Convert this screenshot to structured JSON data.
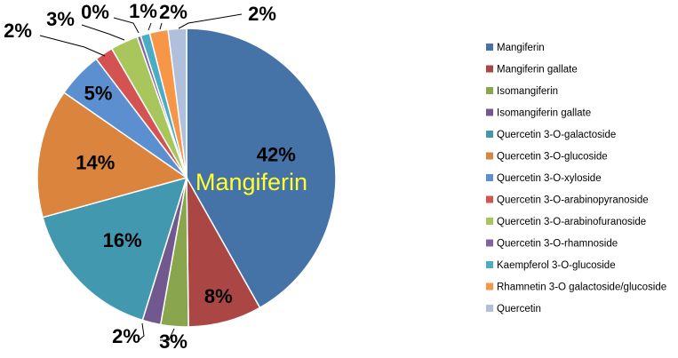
{
  "chart_data": {
    "type": "pie",
    "title": "",
    "center_label": "Mangiferin",
    "legend_position": "right",
    "slices": [
      {
        "name": "Mangiferin",
        "value": 42,
        "label": "42%",
        "color": "#4572A7"
      },
      {
        "name": "Mangiferin gallate",
        "value": 8,
        "label": "8%",
        "color": "#AA4643"
      },
      {
        "name": "Isomangiferin",
        "value": 3,
        "label": "3%",
        "color": "#89A54E"
      },
      {
        "name": "Isomangiferin gallate",
        "value": 2,
        "label": "2%",
        "color": "#71588F"
      },
      {
        "name": "Quercetin 3-O-galactoside",
        "value": 16,
        "label": "16%",
        "color": "#4198AF"
      },
      {
        "name": "Quercetin 3-O-glucoside",
        "value": 14,
        "label": "14%",
        "color": "#DB843D"
      },
      {
        "name": "Quercetin 3-O-xyloside",
        "value": 5,
        "label": "5%",
        "color": "#5B8FCF"
      },
      {
        "name": "Quercetin 3-O-arabinopyranoside",
        "value": 2,
        "label": "2%",
        "color": "#D35352"
      },
      {
        "name": "Quercetin 3-O-arabinofuranoside",
        "value": 3,
        "label": "3%",
        "color": "#A8C65C"
      },
      {
        "name": "Quercetin 3-O-rhamnoside",
        "value": 0.4,
        "label": "0%",
        "color": "#8064A2"
      },
      {
        "name": "Kaempferol 3-O-glucoside",
        "value": 1,
        "label": "1%",
        "color": "#4BACC6"
      },
      {
        "name": "Rhamnetin 3-O galactoside/glucoside",
        "value": 2,
        "label": "2%",
        "color": "#F79646"
      },
      {
        "name": "Quercetin",
        "value": 2,
        "label": "2%",
        "color": "#AFBFDC"
      }
    ]
  }
}
